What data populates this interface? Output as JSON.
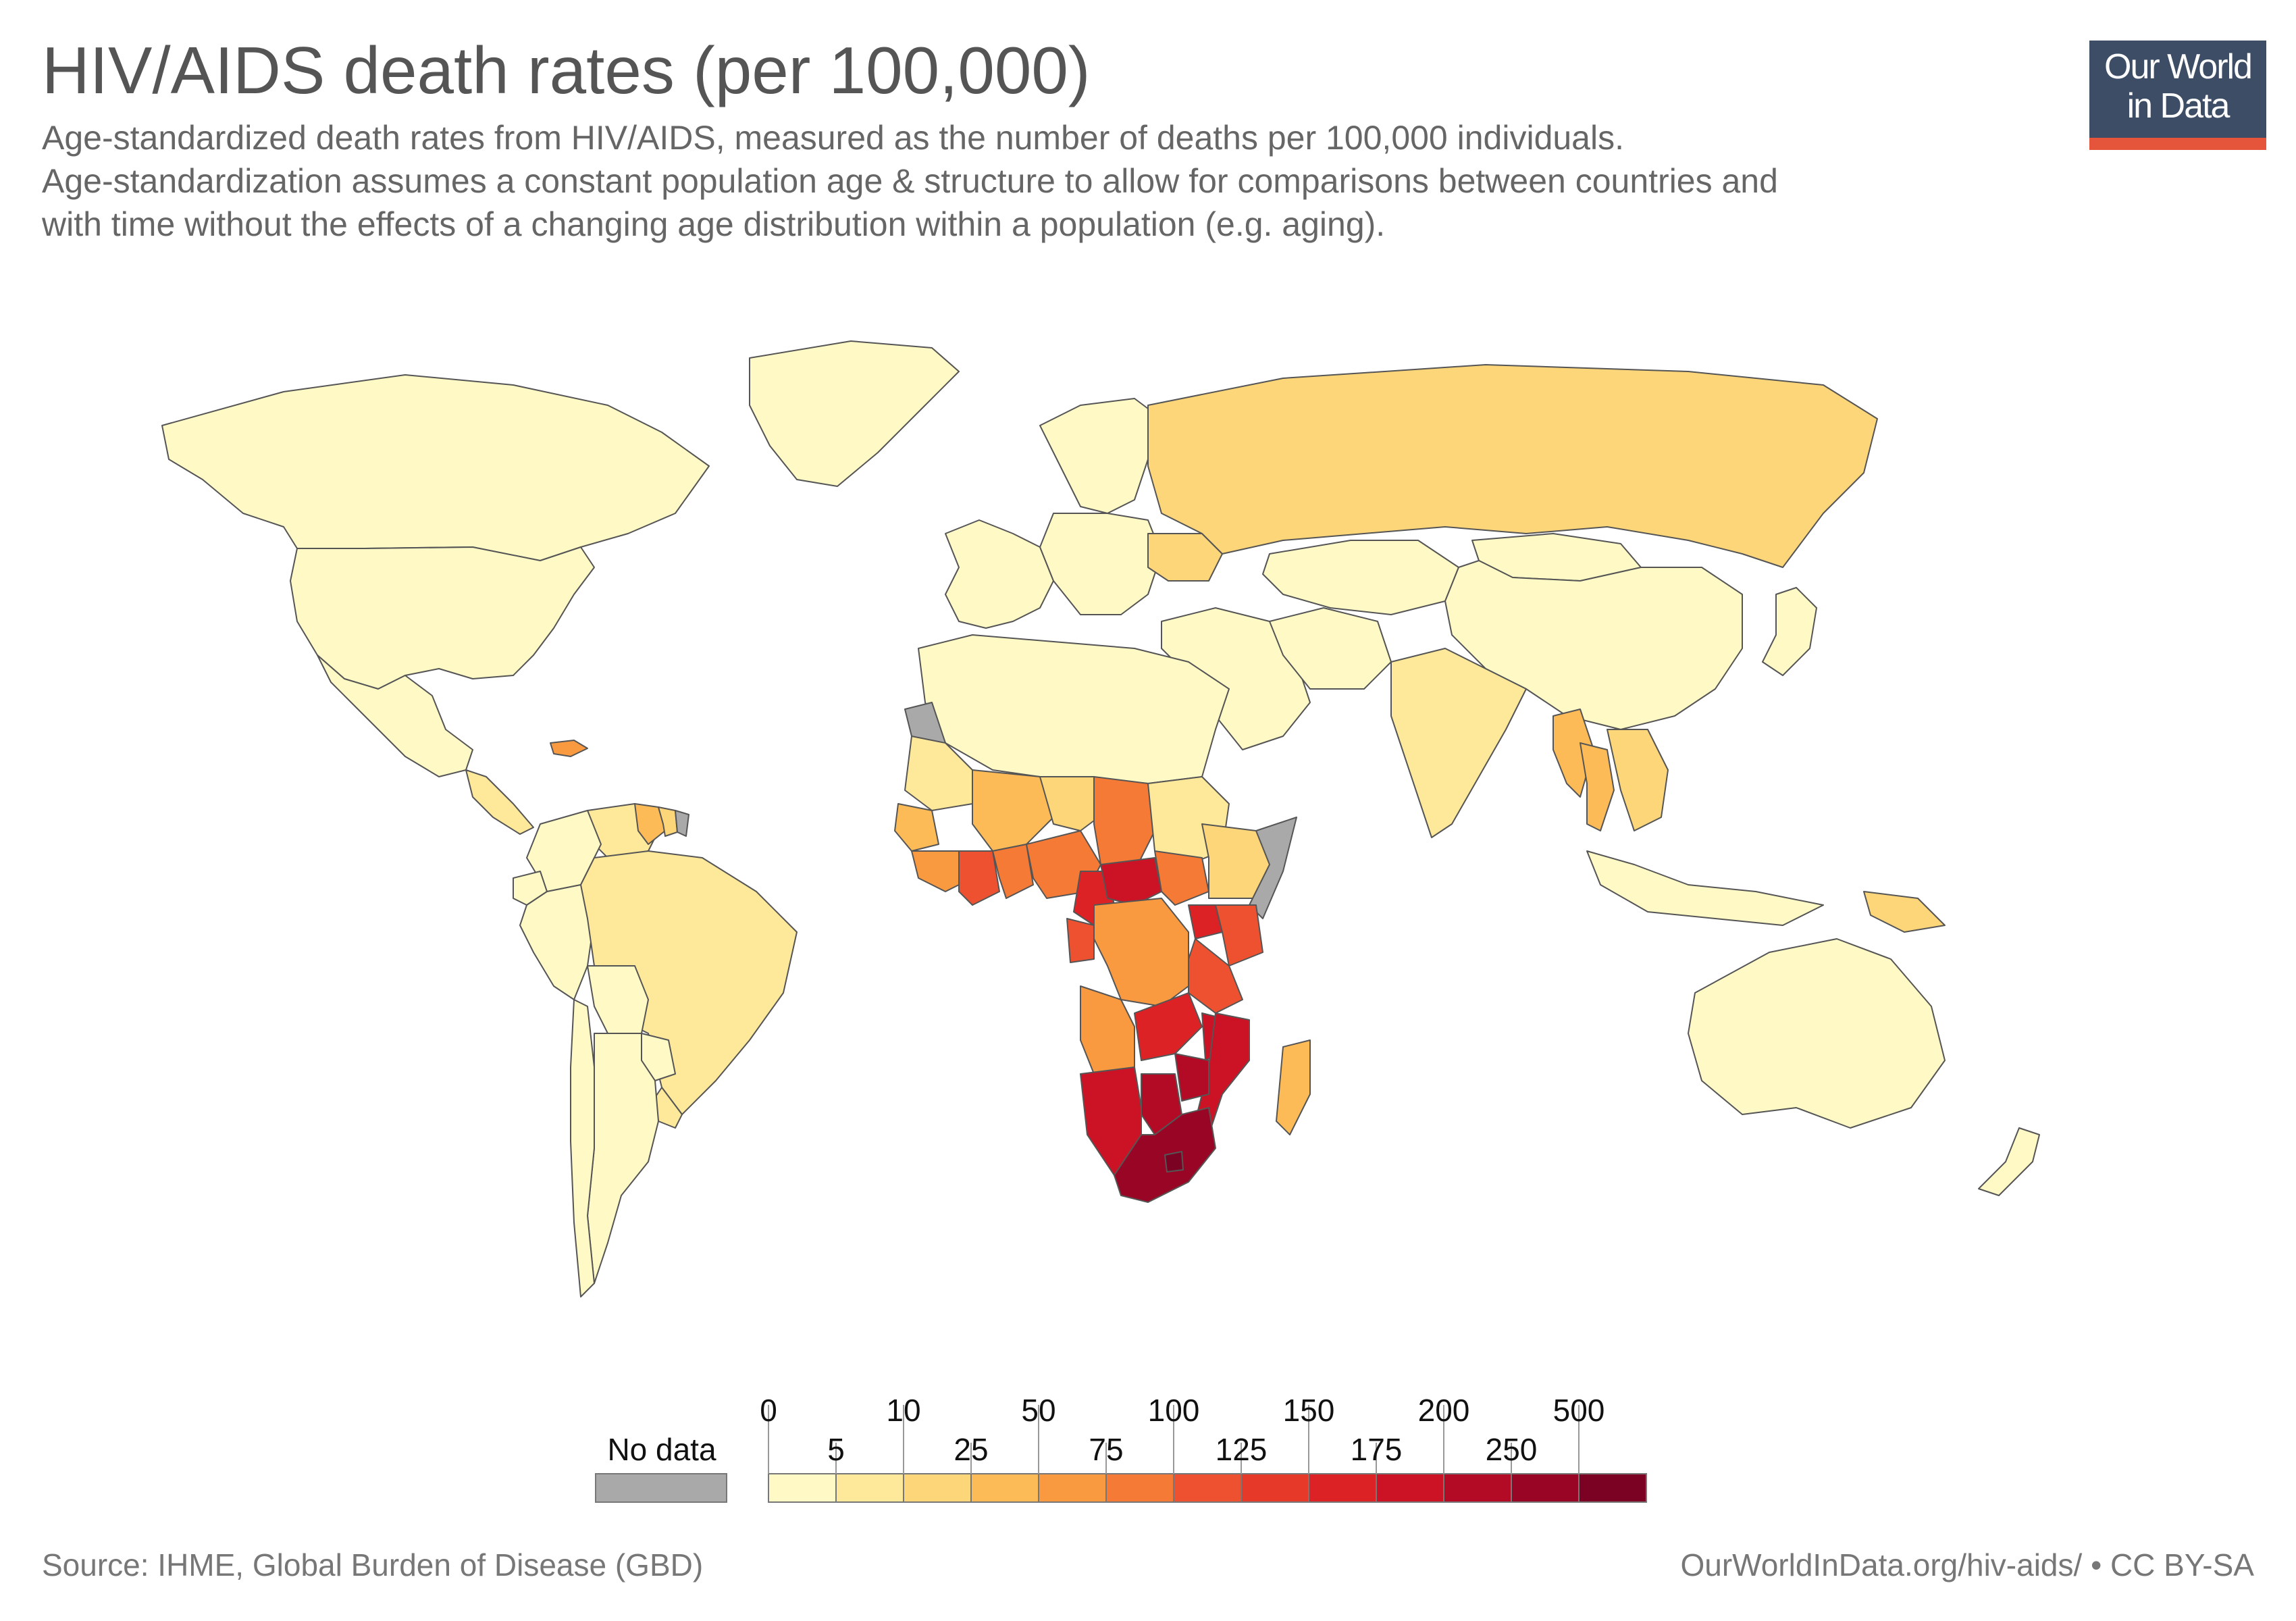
{
  "header": {
    "title": "HIV/AIDS death rates (per 100,000)",
    "subtitle_lines": [
      "Age-standardized death rates from HIV/AIDS, measured as the number of deaths per 100,000 individuals.",
      "Age-standardization assumes a constant population age & structure to allow for comparisons between countries and",
      "with time without the effects of a changing age distribution within a population (e.g. aging)."
    ]
  },
  "logo": {
    "line1": "Our World",
    "line2": "in Data"
  },
  "legend": {
    "no_data_label": "No data",
    "no_data_color": "#a9a9a9",
    "top_ticks": [
      "0",
      "10",
      "50",
      "100",
      "150",
      "200",
      "500"
    ],
    "bottom_ticks": [
      "5",
      "25",
      "75",
      "125",
      "175",
      "250"
    ],
    "bins": [
      {
        "range": "0-5",
        "color": "#fff9c6"
      },
      {
        "range": "5-10",
        "color": "#fee89a"
      },
      {
        "range": "10-25",
        "color": "#fdd679"
      },
      {
        "range": "25-50",
        "color": "#fcbb56"
      },
      {
        "range": "50-75",
        "color": "#fa9a40"
      },
      {
        "range": "75-100",
        "color": "#f57a35"
      },
      {
        "range": "100-125",
        "color": "#ee5130"
      },
      {
        "range": "125-150",
        "color": "#e6392a"
      },
      {
        "range": "150-175",
        "color": "#dd2226"
      },
      {
        "range": "175-200",
        "color": "#cc1326"
      },
      {
        "range": "200-250",
        "color": "#b30a26"
      },
      {
        "range": "250-500",
        "color": "#990625"
      },
      {
        "range": ">500",
        "color": "#7c0223"
      }
    ]
  },
  "map": {
    "ocean_color": "#ffffff",
    "border_color": "#555555",
    "regions": [
      {
        "name": "Canada",
        "bin": 0
      },
      {
        "name": "Greenland",
        "bin": 0
      },
      {
        "name": "United States",
        "bin": 0
      },
      {
        "name": "Mexico",
        "bin": 0
      },
      {
        "name": "Central America",
        "bin": 1
      },
      {
        "name": "Haiti",
        "bin": 4
      },
      {
        "name": "Venezuela",
        "bin": 1
      },
      {
        "name": "Guyana",
        "bin": 3
      },
      {
        "name": "Suriname",
        "bin": 2
      },
      {
        "name": "French Guiana",
        "no_data": true
      },
      {
        "name": "Colombia",
        "bin": 0
      },
      {
        "name": "Ecuador",
        "bin": 0
      },
      {
        "name": "Peru",
        "bin": 0
      },
      {
        "name": "Brazil",
        "bin": 1
      },
      {
        "name": "Bolivia",
        "bin": 0
      },
      {
        "name": "Paraguay",
        "bin": 0
      },
      {
        "name": "Uruguay",
        "bin": 1
      },
      {
        "name": "Argentina",
        "bin": 0
      },
      {
        "name": "Chile",
        "bin": 0
      },
      {
        "name": "Western Europe",
        "bin": 0
      },
      {
        "name": "Scandinavia",
        "bin": 0
      },
      {
        "name": "Eastern Europe",
        "bin": 0
      },
      {
        "name": "Ukraine",
        "bin": 2
      },
      {
        "name": "Russia",
        "bin": 2
      },
      {
        "name": "Kazakhstan",
        "bin": 0
      },
      {
        "name": "Mongolia",
        "bin": 0
      },
      {
        "name": "China",
        "bin": 0
      },
      {
        "name": "Middle East",
        "bin": 0
      },
      {
        "name": "Iran",
        "bin": 0
      },
      {
        "name": "India",
        "bin": 1
      },
      {
        "name": "Myanmar",
        "bin": 3
      },
      {
        "name": "Thailand",
        "bin": 3
      },
      {
        "name": "Indochina",
        "bin": 2
      },
      {
        "name": "Indonesia",
        "bin": 0
      },
      {
        "name": "Papua New Guinea",
        "bin": 2
      },
      {
        "name": "Japan",
        "bin": 0
      },
      {
        "name": "Australia",
        "bin": 0
      },
      {
        "name": "New Zealand",
        "bin": 0
      },
      {
        "name": "North Africa",
        "bin": 0
      },
      {
        "name": "Western Sahara",
        "no_data": true
      },
      {
        "name": "Mauritania",
        "bin": 1
      },
      {
        "name": "Mali",
        "bin": 3
      },
      {
        "name": "Niger",
        "bin": 2
      },
      {
        "name": "Chad",
        "bin": 5
      },
      {
        "name": "Sudan",
        "bin": 1
      },
      {
        "name": "Senegal",
        "bin": 3
      },
      {
        "name": "Guinea",
        "bin": 4
      },
      {
        "name": "Cote d'Ivoire",
        "bin": 6
      },
      {
        "name": "Ghana",
        "bin": 5
      },
      {
        "name": "Nigeria",
        "bin": 5
      },
      {
        "name": "Cameroon",
        "bin": 8
      },
      {
        "name": "Central African Republic",
        "bin": 9
      },
      {
        "name": "South Sudan",
        "bin": 5
      },
      {
        "name": "Ethiopia",
        "bin": 2
      },
      {
        "name": "Somalia",
        "no_data": true
      },
      {
        "name": "Gabon",
        "bin": 6
      },
      {
        "name": "DR Congo",
        "bin": 4
      },
      {
        "name": "Uganda",
        "bin": 8
      },
      {
        "name": "Kenya",
        "bin": 6
      },
      {
        "name": "Tanzania",
        "bin": 6
      },
      {
        "name": "Angola",
        "bin": 4
      },
      {
        "name": "Zambia",
        "bin": 8
      },
      {
        "name": "Malawi",
        "bin": 9
      },
      {
        "name": "Mozambique",
        "bin": 9
      },
      {
        "name": "Madagascar",
        "bin": 3
      },
      {
        "name": "Namibia",
        "bin": 9
      },
      {
        "name": "Botswana",
        "bin": 10
      },
      {
        "name": "Zimbabwe",
        "bin": 10
      },
      {
        "name": "South Africa",
        "bin": 11
      },
      {
        "name": "Lesotho",
        "bin": 12
      }
    ]
  },
  "footer": {
    "source": "Source: IHME, Global Burden of Disease (GBD)",
    "credit": "OurWorldInData.org/hiv-aids/ • CC BY-SA"
  }
}
